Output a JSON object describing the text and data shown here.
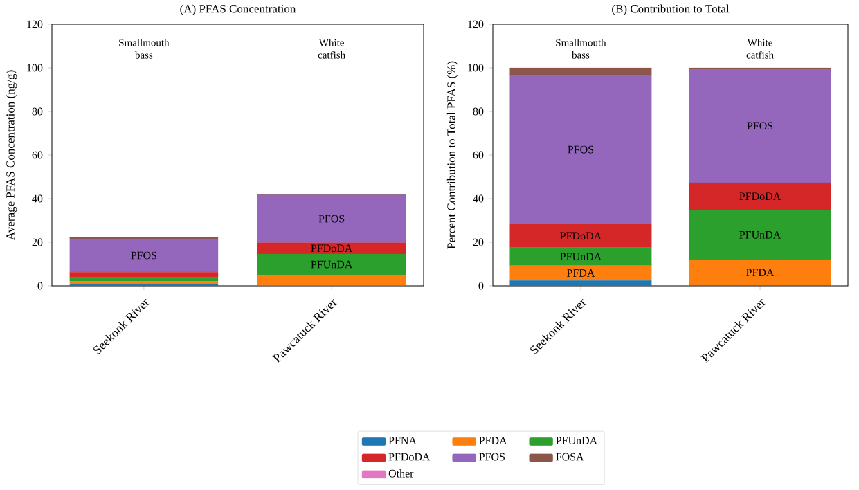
{
  "chart_data": [
    {
      "type": "bar",
      "stacked": true,
      "title": "(A) PFAS Concentration",
      "ylabel": "Average PFAS Concentration (ng/g)",
      "categories": [
        "Seekonk River",
        "Pawcatuck River"
      ],
      "series": [
        {
          "color": "#1f77b4",
          "values": [
            0.6,
            0.1
          ]
        },
        {
          "color": "#ff7f0e",
          "values": [
            1.5,
            4.9
          ]
        },
        {
          "color": "#2ca02c",
          "values": [
            1.8,
            9.6
          ],
          "value_labels": [
            null,
            "PFUnDA"
          ]
        },
        {
          "color": "#d62728",
          "values": [
            2.4,
            5.2
          ],
          "value_labels": [
            null,
            "PFDoDA"
          ]
        },
        {
          "color": "#9467bd",
          "values": [
            15.3,
            21.9
          ],
          "value_labels": [
            "PFOS",
            "PFOS"
          ]
        },
        {
          "color": "#8c564b",
          "values": [
            0.7,
            0.2
          ]
        },
        {
          "color": "#e377c2",
          "values": [
            0,
            0
          ]
        }
      ],
      "ylim": [
        0,
        120
      ],
      "yticks": [
        0,
        20,
        40,
        60,
        80,
        100,
        120
      ],
      "grid": false,
      "annotations": [
        "Smallmouth bass",
        "White catfish"
      ]
    },
    {
      "type": "bar",
      "stacked": true,
      "title": "(B) Contribution to Total",
      "ylabel": "Percent Contribution to Total PFAS (%)",
      "categories": [
        "Seekonk River",
        "Pawcatuck River"
      ],
      "series": [
        {
          "name": "PFNA",
          "color": "#1f77b4",
          "values": [
            2.5,
            0.2
          ]
        },
        {
          "name": "PFDA",
          "color": "#ff7f0e",
          "values": [
            6.8,
            11.8
          ],
          "value_labels": [
            "PFDA",
            "PFDA"
          ]
        },
        {
          "name": "PFUnDA",
          "color": "#2ca02c",
          "values": [
            8.2,
            22.8
          ],
          "value_labels": [
            "PFUnDA",
            "PFUnDA"
          ]
        },
        {
          "name": "PFDoDA",
          "color": "#d62728",
          "values": [
            10.8,
            12.5
          ],
          "value_labels": [
            "PFDoDA",
            "PFDoDA"
          ]
        },
        {
          "name": "PFOS",
          "color": "#9467bd",
          "values": [
            68.4,
            52.2
          ],
          "value_labels": [
            "PFOS",
            "PFOS"
          ]
        },
        {
          "name": "FOSA",
          "color": "#8c564b",
          "values": [
            3.3,
            0.5
          ]
        },
        {
          "name": "Other",
          "color": "#e377c2",
          "values": [
            0,
            0
          ]
        }
      ],
      "ylim": [
        0,
        120
      ],
      "yticks": [
        0,
        20,
        40,
        60,
        80,
        100,
        120
      ],
      "grid": false,
      "legend": "bottom",
      "annotations": [
        "Smallmouth bass",
        "White catfish"
      ]
    }
  ]
}
